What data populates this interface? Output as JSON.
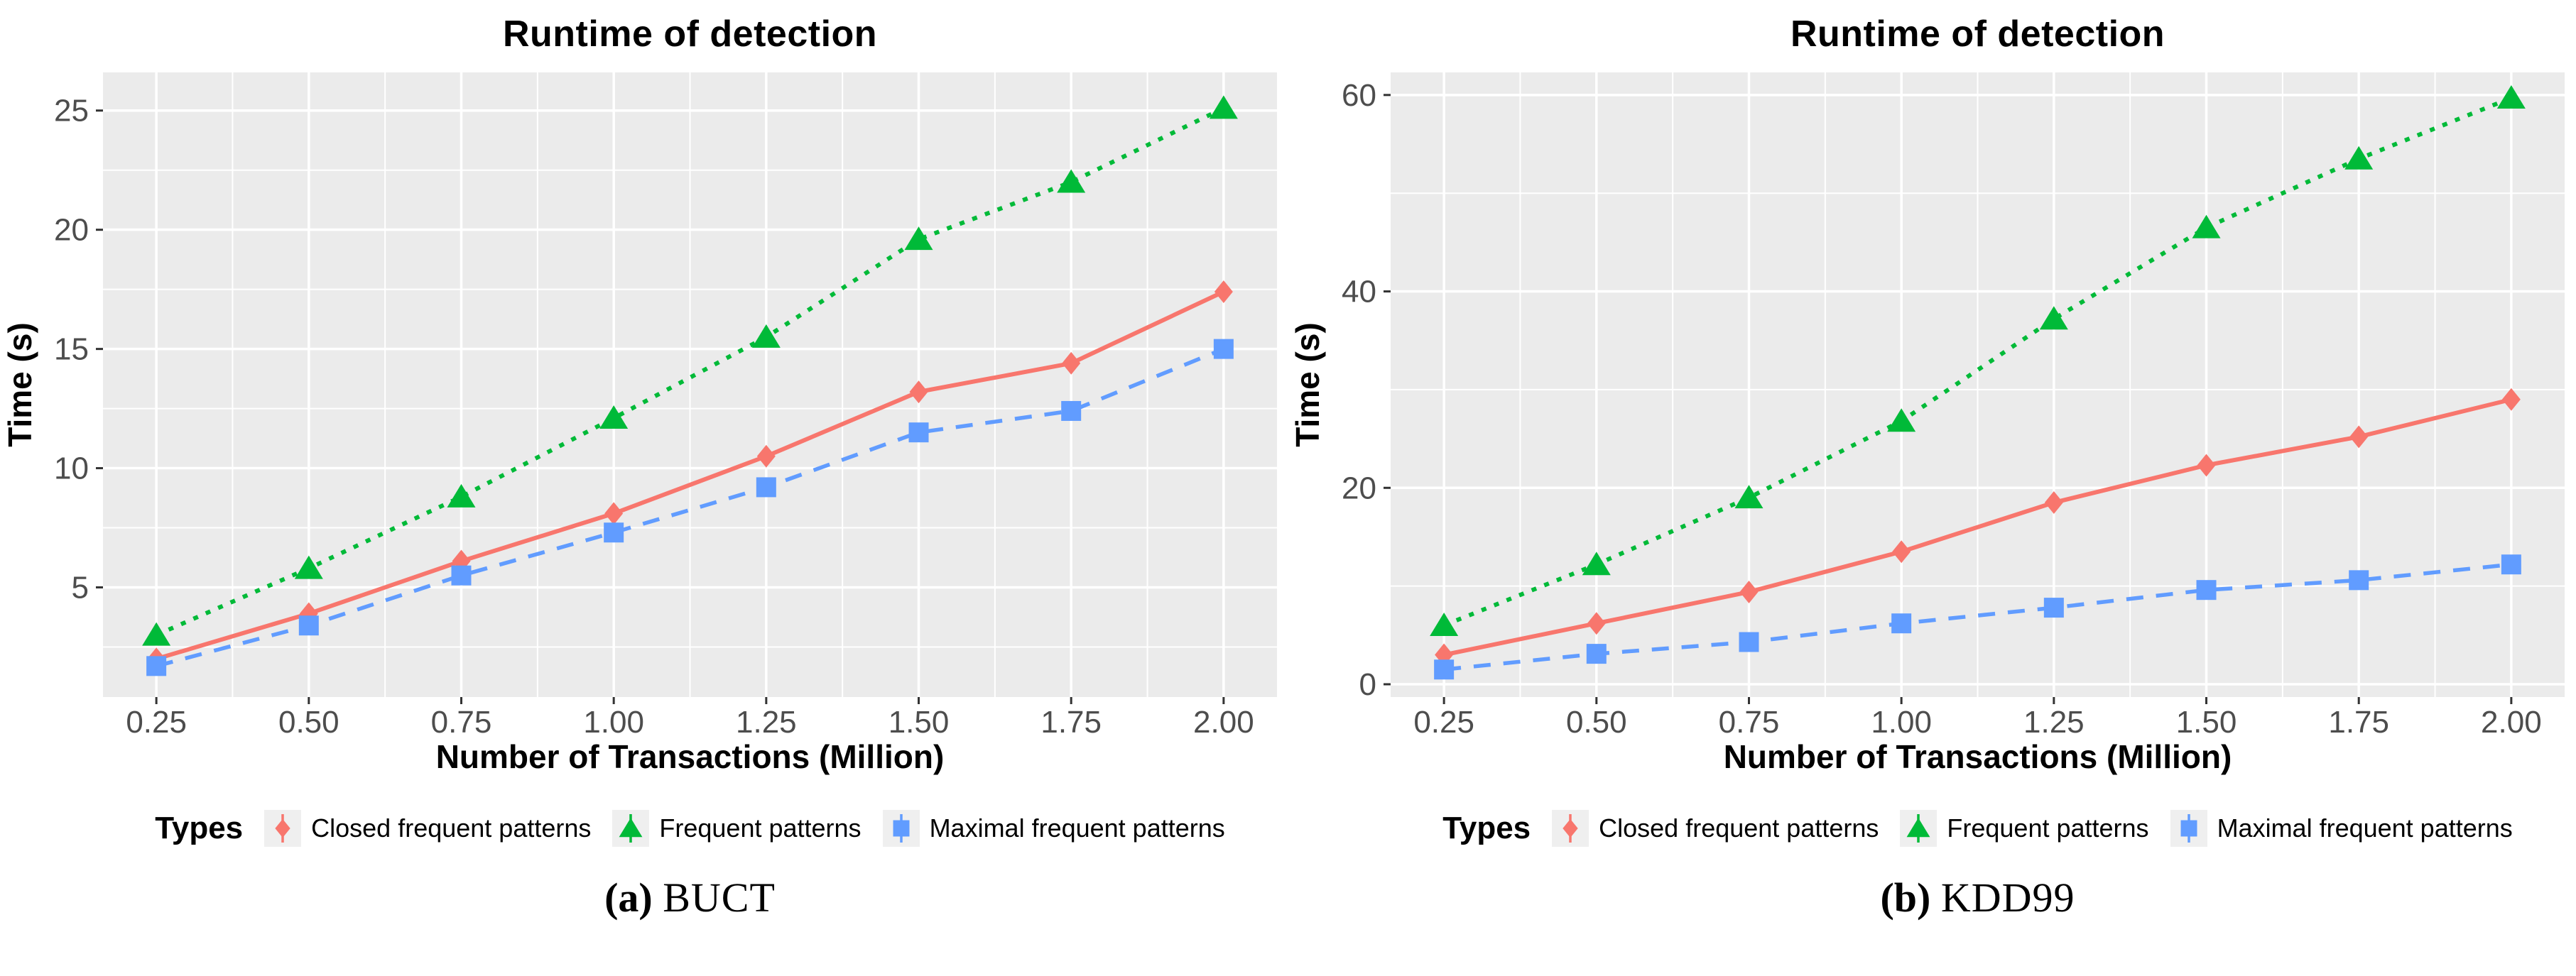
{
  "style": {
    "panel_bg": "#EBEBEB",
    "grid_color": "#FFFFFF",
    "tick_label_color": "#4D4D4D",
    "tick_mark_color": "#333333",
    "legend_key_bg": "#EFEFEF",
    "series_red": "#F8766D",
    "series_green": "#00BA38",
    "series_blue": "#619CFF"
  },
  "chart_data": [
    {
      "type": "line",
      "title": "Runtime of detection",
      "xlabel": "Number of Transactions (Million)",
      "ylabel": "Time (s)",
      "legend_title": "Types",
      "caption": {
        "tag": "(a)",
        "text": "BUCT"
      },
      "x": [
        0.25,
        0.5,
        0.75,
        1.0,
        1.25,
        1.5,
        1.75,
        2.0
      ],
      "x_tick_labels": [
        "0.25",
        "0.50",
        "0.75",
        "1.00",
        "1.25",
        "1.50",
        "1.75",
        "2.00"
      ],
      "xlim": [
        0.1625,
        2.0875
      ],
      "y_ticks": [
        5,
        10,
        15,
        20,
        25
      ],
      "y_minor": [
        2.5,
        7.5,
        12.5,
        17.5,
        22.5
      ],
      "ylim": [
        0.4,
        26.6
      ],
      "grid": "on",
      "legend_position": "bottom",
      "series": [
        {
          "name": "Closed frequent patterns",
          "color": "#F8766D",
          "marker": "diamond",
          "linestyle": "solid",
          "values": [
            2.0,
            3.9,
            6.1,
            8.1,
            10.5,
            13.2,
            14.4,
            17.4
          ]
        },
        {
          "name": "Frequent patterns",
          "color": "#00BA38",
          "marker": "triangle",
          "linestyle": "dotted",
          "values": [
            3.0,
            5.8,
            8.8,
            12.1,
            15.5,
            19.6,
            22.0,
            25.1
          ]
        },
        {
          "name": "Maximal frequent patterns",
          "color": "#619CFF",
          "marker": "square",
          "linestyle": "dashed",
          "values": [
            1.7,
            3.4,
            5.5,
            7.3,
            9.2,
            11.5,
            12.4,
            15.0
          ]
        }
      ]
    },
    {
      "type": "line",
      "title": "Runtime of detection",
      "xlabel": "Number of Transactions (Million)",
      "ylabel": "Time (s)",
      "legend_title": "Types",
      "caption": {
        "tag": "(b)",
        "text": "KDD99"
      },
      "x": [
        0.25,
        0.5,
        0.75,
        1.0,
        1.25,
        1.5,
        1.75,
        2.0
      ],
      "x_tick_labels": [
        "0.25",
        "0.50",
        "0.75",
        "1.00",
        "1.25",
        "1.50",
        "1.75",
        "2.00"
      ],
      "xlim": [
        0.1625,
        2.0875
      ],
      "y_ticks": [
        0,
        20,
        40,
        60
      ],
      "y_minor": [
        10,
        30,
        50
      ],
      "ylim": [
        -1.3,
        62.3
      ],
      "grid": "on",
      "legend_position": "bottom",
      "series": [
        {
          "name": "Closed frequent patterns",
          "color": "#F8766D",
          "marker": "diamond",
          "linestyle": "solid",
          "values": [
            3.0,
            6.2,
            9.4,
            13.5,
            18.5,
            22.3,
            25.2,
            29.0
          ]
        },
        {
          "name": "Frequent patterns",
          "color": "#00BA38",
          "marker": "triangle",
          "linestyle": "dotted",
          "values": [
            6.0,
            12.2,
            19.0,
            26.8,
            37.2,
            46.5,
            53.5,
            59.7
          ]
        },
        {
          "name": "Maximal frequent patterns",
          "color": "#619CFF",
          "marker": "square",
          "linestyle": "dashed",
          "values": [
            1.5,
            3.1,
            4.3,
            6.2,
            7.8,
            9.6,
            10.6,
            12.2
          ]
        }
      ]
    }
  ]
}
